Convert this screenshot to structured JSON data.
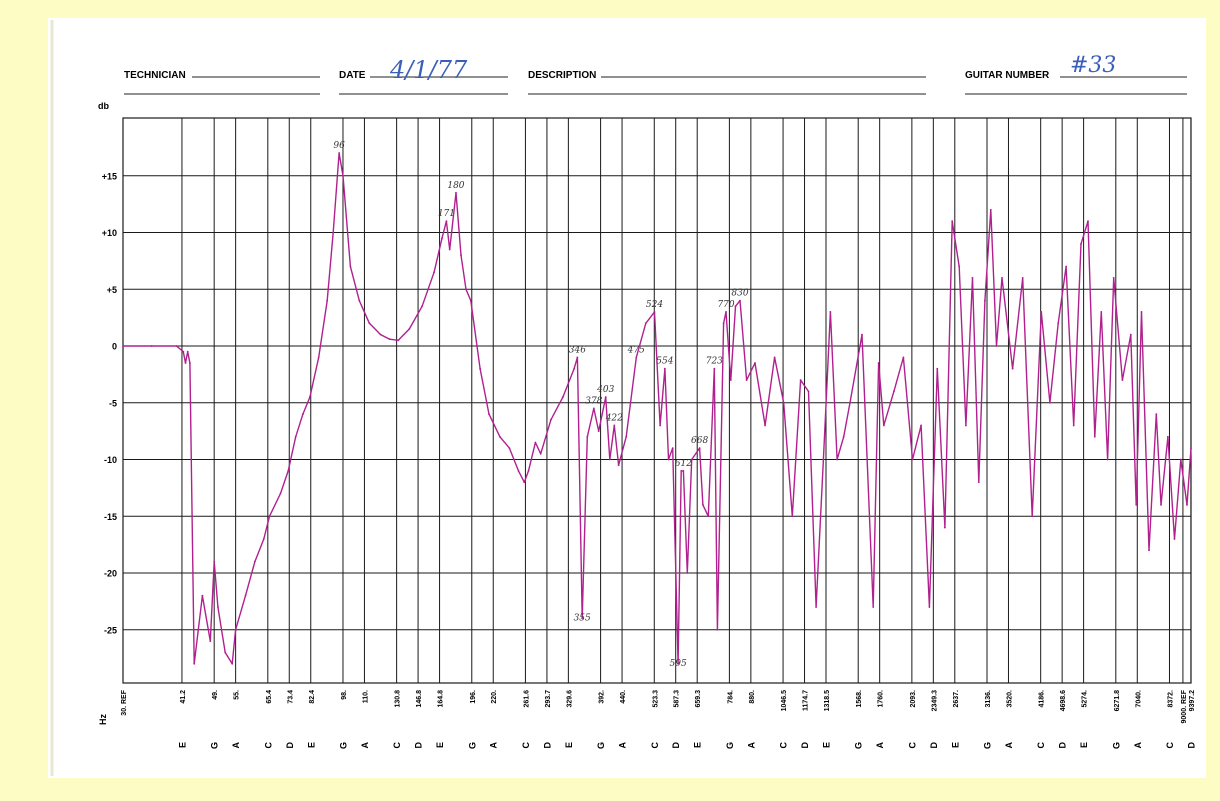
{
  "header": {
    "technician_label": "TECHNICIAN",
    "date_label": "DATE",
    "date_value": "4/1/77",
    "description_label": "DESCRIPTION",
    "guitar_number_label": "GUITAR NUMBER",
    "guitar_number_value": "#33"
  },
  "colors": {
    "paper": "#fdfcc4",
    "sheet": "#ffffff",
    "grid": "#1a1a1a",
    "trace": "#b0208f",
    "ink_blue": "#3a5fb8"
  },
  "chart_data": {
    "type": "line",
    "ylabel": "db",
    "xlabel": "Hz",
    "ylim": [
      -30,
      20
    ],
    "y_ticks": [
      {
        "value": 15,
        "label": "+15"
      },
      {
        "value": 10,
        "label": "+10"
      },
      {
        "value": 5,
        "label": "+5"
      },
      {
        "value": 0,
        "label": "0"
      },
      {
        "value": -5,
        "label": "-5"
      },
      {
        "value": -10,
        "label": "-10"
      },
      {
        "value": -15,
        "label": "-15"
      },
      {
        "value": -20,
        "label": "-20"
      },
      {
        "value": -25,
        "label": "-25"
      }
    ],
    "x_ticks": [
      {
        "freq": "30. REF",
        "note": ""
      },
      {
        "freq": "41.2",
        "note": "E"
      },
      {
        "freq": "49.",
        "note": "G"
      },
      {
        "freq": "55.",
        "note": "A"
      },
      {
        "freq": "65.4",
        "note": "C"
      },
      {
        "freq": "73.4",
        "note": "D"
      },
      {
        "freq": "82.4",
        "note": "E"
      },
      {
        "freq": "98.",
        "note": "G"
      },
      {
        "freq": "110.",
        "note": "A"
      },
      {
        "freq": "130.8",
        "note": "C"
      },
      {
        "freq": "146.8",
        "note": "D"
      },
      {
        "freq": "164.8",
        "note": "E"
      },
      {
        "freq": "196.",
        "note": "G"
      },
      {
        "freq": "220.",
        "note": "A"
      },
      {
        "freq": "261.6",
        "note": "C"
      },
      {
        "freq": "293.7",
        "note": "D"
      },
      {
        "freq": "329.6",
        "note": "E"
      },
      {
        "freq": "392.",
        "note": "G"
      },
      {
        "freq": "440.",
        "note": "A"
      },
      {
        "freq": "523.3",
        "note": "C"
      },
      {
        "freq": "587.3",
        "note": "D"
      },
      {
        "freq": "659.3",
        "note": "E"
      },
      {
        "freq": "784.",
        "note": "G"
      },
      {
        "freq": "880.",
        "note": "A"
      },
      {
        "freq": "1046.5",
        "note": "C"
      },
      {
        "freq": "1174.7",
        "note": "D"
      },
      {
        "freq": "1318.5",
        "note": "E"
      },
      {
        "freq": "1568.",
        "note": "G"
      },
      {
        "freq": "1760.",
        "note": "A"
      },
      {
        "freq": "2093.",
        "note": "C"
      },
      {
        "freq": "2349.3",
        "note": "D"
      },
      {
        "freq": "2637.",
        "note": "E"
      },
      {
        "freq": "3136.",
        "note": "G"
      },
      {
        "freq": "3520.",
        "note": "A"
      },
      {
        "freq": "4186.",
        "note": "C"
      },
      {
        "freq": "4698.6",
        "note": "D"
      },
      {
        "freq": "5274.",
        "note": "E"
      },
      {
        "freq": "6271.8",
        "note": "G"
      },
      {
        "freq": "7040.",
        "note": "A"
      },
      {
        "freq": "8372.",
        "note": "C"
      },
      {
        "freq": "9000. REF",
        "note": ""
      },
      {
        "freq": "9397.2",
        "note": "D"
      }
    ],
    "series": [
      {
        "points": [
          [
            30,
            0
          ],
          [
            35,
            0
          ],
          [
            40,
            0
          ],
          [
            41.5,
            -0.5
          ],
          [
            42,
            -1.5
          ],
          [
            42.5,
            -0.5
          ],
          [
            43,
            -1.5
          ],
          [
            44,
            -28
          ],
          [
            46,
            -22
          ],
          [
            48,
            -26
          ],
          [
            49,
            -19
          ],
          [
            50,
            -23
          ],
          [
            52,
            -27
          ],
          [
            54,
            -28
          ],
          [
            55,
            -25
          ],
          [
            58,
            -22
          ],
          [
            61,
            -19
          ],
          [
            64,
            -17
          ],
          [
            66,
            -15
          ],
          [
            70,
            -13
          ],
          [
            73,
            -11
          ],
          [
            76,
            -8
          ],
          [
            79,
            -6
          ],
          [
            82,
            -4.5
          ],
          [
            86,
            -1
          ],
          [
            90,
            4
          ],
          [
            93,
            10
          ],
          [
            96,
            17
          ],
          [
            98,
            15
          ],
          [
            102,
            7
          ],
          [
            107,
            4
          ],
          [
            113,
            2
          ],
          [
            120,
            1
          ],
          [
            126,
            0.6
          ],
          [
            132,
            0.5
          ],
          [
            140,
            1.5
          ],
          [
            150,
            3.5
          ],
          [
            160,
            6.5
          ],
          [
            167,
            9.5
          ],
          [
            171,
            11
          ],
          [
            174,
            8.5
          ],
          [
            180,
            13.5
          ],
          [
            185,
            8
          ],
          [
            190,
            5
          ],
          [
            195,
            4
          ],
          [
            205,
            -2
          ],
          [
            215,
            -6
          ],
          [
            228,
            -8
          ],
          [
            240,
            -9
          ],
          [
            252,
            -11
          ],
          [
            260,
            -12
          ],
          [
            266,
            -11
          ],
          [
            276,
            -8.5
          ],
          [
            284,
            -9.5
          ],
          [
            300,
            -6.5
          ],
          [
            320,
            -4.5
          ],
          [
            340,
            -2
          ],
          [
            346,
            -1
          ],
          [
            355,
            -24
          ],
          [
            365,
            -8
          ],
          [
            378,
            -5.5
          ],
          [
            388,
            -7.5
          ],
          [
            403,
            -4.5
          ],
          [
            412,
            -10
          ],
          [
            422,
            -7
          ],
          [
            432,
            -10.5
          ],
          [
            450,
            -8
          ],
          [
            475,
            -1
          ],
          [
            500,
            2
          ],
          [
            524,
            3
          ],
          [
            540,
            -7
          ],
          [
            554,
            -2
          ],
          [
            565,
            -10
          ],
          [
            578,
            -9
          ],
          [
            595,
            -28
          ],
          [
            605,
            -11
          ],
          [
            612,
            -11
          ],
          [
            625,
            -20
          ],
          [
            640,
            -10
          ],
          [
            668,
            -9
          ],
          [
            680,
            -14
          ],
          [
            700,
            -15
          ],
          [
            723,
            -2
          ],
          [
            735,
            -25
          ],
          [
            760,
            2
          ],
          [
            770,
            3
          ],
          [
            790,
            -3
          ],
          [
            810,
            3.5
          ],
          [
            830,
            4
          ],
          [
            860,
            -3
          ],
          [
            900,
            -1.5
          ],
          [
            950,
            -7
          ],
          [
            1000,
            -1
          ],
          [
            1050,
            -5
          ],
          [
            1100,
            -15
          ],
          [
            1150,
            -3
          ],
          [
            1200,
            -4
          ],
          [
            1250,
            -23
          ],
          [
            1300,
            -10
          ],
          [
            1350,
            3
          ],
          [
            1400,
            -10
          ],
          [
            1450,
            -8
          ],
          [
            1500,
            -5
          ],
          [
            1600,
            1
          ],
          [
            1700,
            -23
          ],
          [
            1750,
            -1.5
          ],
          [
            1800,
            -7
          ],
          [
            1900,
            -4
          ],
          [
            2000,
            -1
          ],
          [
            2100,
            -10
          ],
          [
            2200,
            -7
          ],
          [
            2300,
            -23
          ],
          [
            2400,
            -2
          ],
          [
            2500,
            -16
          ],
          [
            2600,
            11
          ],
          [
            2700,
            7
          ],
          [
            2800,
            -7
          ],
          [
            2900,
            6
          ],
          [
            3000,
            -12
          ],
          [
            3100,
            4
          ],
          [
            3200,
            12
          ],
          [
            3300,
            0
          ],
          [
            3400,
            6
          ],
          [
            3600,
            -2
          ],
          [
            3800,
            6
          ],
          [
            4000,
            -15
          ],
          [
            4200,
            3
          ],
          [
            4400,
            -5
          ],
          [
            4600,
            2
          ],
          [
            4800,
            7
          ],
          [
            5000,
            -7
          ],
          [
            5200,
            9
          ],
          [
            5400,
            11
          ],
          [
            5600,
            -8
          ],
          [
            5800,
            3
          ],
          [
            6000,
            -10
          ],
          [
            6200,
            6
          ],
          [
            6500,
            -3
          ],
          [
            6800,
            1
          ],
          [
            7000,
            -14
          ],
          [
            7200,
            3
          ],
          [
            7500,
            -18
          ],
          [
            7800,
            -6
          ],
          [
            8000,
            -14
          ],
          [
            8300,
            -8
          ],
          [
            8600,
            -17
          ],
          [
            8900,
            -10
          ],
          [
            9200,
            -14
          ],
          [
            9400,
            -9
          ]
        ]
      }
    ],
    "annotations": [
      {
        "x": 96,
        "y": 17,
        "text": "96"
      },
      {
        "x": 171,
        "y": 11,
        "text": "171"
      },
      {
        "x": 180,
        "y": 13.5,
        "text": "180"
      },
      {
        "x": 346,
        "y": -1,
        "text": "346"
      },
      {
        "x": 355,
        "y": -24,
        "text": "355"
      },
      {
        "x": 378,
        "y": -5.5,
        "text": "378"
      },
      {
        "x": 403,
        "y": -4.5,
        "text": "403"
      },
      {
        "x": 422,
        "y": -7,
        "text": "422"
      },
      {
        "x": 475,
        "y": -1,
        "text": "475"
      },
      {
        "x": 524,
        "y": 3,
        "text": "524"
      },
      {
        "x": 554,
        "y": -2,
        "text": "554"
      },
      {
        "x": 595,
        "y": -28,
        "text": "595"
      },
      {
        "x": 612,
        "y": -11,
        "text": "612"
      },
      {
        "x": 668,
        "y": -9,
        "text": "668"
      },
      {
        "x": 723,
        "y": -2,
        "text": "723"
      },
      {
        "x": 770,
        "y": 3,
        "text": "770"
      },
      {
        "x": 830,
        "y": 4,
        "text": "830"
      }
    ]
  }
}
